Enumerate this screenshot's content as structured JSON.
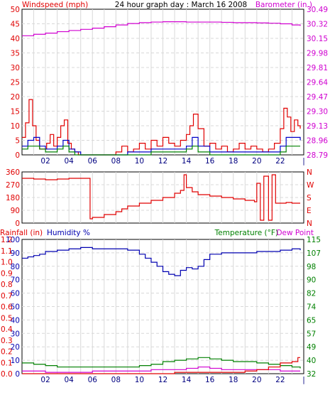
{
  "header": {
    "title": "24 hour graph day : March 16 2008",
    "left_label": "Windspeed (mph)",
    "right_label": "Barometer (in.)"
  },
  "colors": {
    "background": "#ffffff",
    "grid": "#d8d8d8",
    "frame": "#000000",
    "wind": "#e00000",
    "wind_gust_mid": "#0000c8",
    "wind_low": "#008000",
    "barometer": "#d000d0",
    "direction": "#e00000",
    "rainfall": "#e00000",
    "humidity": "#0000b0",
    "temperature": "#008000",
    "dewpoint": "#d000d0",
    "label_red": "#e00000",
    "label_magenta": "#d000d0",
    "label_blue": "#0000b0",
    "label_green": "#008000"
  },
  "x_ticks": [
    "02",
    "04",
    "06",
    "08",
    "10",
    "12",
    "14",
    "16",
    "18",
    "20",
    "22",
    "|"
  ],
  "chart_data": [
    {
      "type": "line",
      "title": "24 hour graph day : March 16 2008",
      "xlabel": "",
      "ylabel": "Windspeed (mph)",
      "y2label": "Barometer (in.)",
      "xlim": [
        0,
        24
      ],
      "ylim": [
        0,
        50
      ],
      "y_ticks": [
        "0",
        "5",
        "10",
        "15",
        "20",
        "25",
        "30",
        "35",
        "40",
        "45",
        "50"
      ],
      "y2_ticks": [
        "28.79",
        "28.96",
        "29.13",
        "29.30",
        "29.47",
        "29.64",
        "29.81",
        "29.98",
        "30.15",
        "30.32",
        "30.49"
      ],
      "series": [
        {
          "color": "#d000d0",
          "x": [
            0,
            1,
            2,
            3,
            4,
            5,
            6,
            7,
            8,
            9,
            10,
            11,
            12,
            13,
            14,
            15,
            16,
            17,
            18,
            19,
            20,
            21,
            22,
            23,
            23.7
          ],
          "y": [
            40.9,
            41.4,
            41.8,
            42.3,
            42.7,
            43.1,
            43.5,
            44.0,
            44.6,
            45.1,
            45.4,
            45.6,
            45.7,
            45.7,
            45.6,
            45.6,
            45.6,
            45.5,
            45.4,
            45.4,
            45.3,
            45.2,
            45.0,
            44.6,
            44.3
          ]
        },
        {
          "color": "#e00000",
          "x": [
            0,
            0.3,
            0.6,
            0.9,
            1.2,
            1.5,
            1.8,
            2.1,
            2.4,
            2.7,
            3.0,
            3.3,
            3.6,
            3.9,
            4.2,
            4.5,
            4.8,
            5.2,
            6,
            7,
            8,
            8.5,
            9,
            9.5,
            10,
            10.5,
            11,
            11.5,
            12,
            12.5,
            13,
            13.5,
            14,
            14.3,
            14.6,
            15,
            15.5,
            16,
            16.5,
            17,
            17.5,
            18,
            18.5,
            19,
            19.5,
            20,
            20.5,
            21,
            21.5,
            22,
            22.3,
            22.6,
            22.9,
            23.2,
            23.5,
            23.7
          ],
          "y": [
            6,
            11,
            19,
            10,
            5,
            2,
            2,
            4,
            7,
            3,
            6,
            10,
            12,
            4,
            2,
            1,
            0,
            0,
            0,
            0,
            1,
            3,
            1,
            2,
            4,
            2,
            5,
            3,
            6,
            4,
            3,
            5,
            7,
            10,
            14,
            9,
            3,
            4,
            2,
            3,
            1,
            2,
            4,
            2,
            3,
            2,
            1,
            2,
            4,
            9,
            16,
            13,
            8,
            12,
            10,
            9
          ]
        },
        {
          "color": "#0000c8",
          "x": [
            0,
            0.5,
            1,
            1.5,
            2,
            2.5,
            3,
            3.5,
            4,
            4.5,
            5,
            6,
            7,
            8,
            9,
            10,
            11,
            12,
            13,
            14,
            14.5,
            15,
            16,
            17,
            18,
            19,
            20,
            21,
            22,
            22.5,
            23,
            23.7
          ],
          "y": [
            3,
            5,
            6,
            3,
            2,
            2,
            3,
            5,
            2,
            1,
            0,
            0,
            0,
            0,
            1,
            1,
            2,
            2,
            2,
            3,
            6,
            3,
            1,
            1,
            1,
            1,
            1,
            1,
            3,
            6,
            6,
            5
          ]
        },
        {
          "color": "#008000",
          "x": [
            0,
            0.5,
            1,
            1.5,
            2,
            2.5,
            3,
            3.5,
            4,
            4.5,
            5,
            6,
            7,
            8,
            9,
            10,
            11,
            12,
            13,
            14,
            14.5,
            15,
            16,
            17,
            18,
            19,
            20,
            21,
            22,
            22.5,
            23,
            23.7
          ],
          "y": [
            2,
            3,
            3,
            2,
            1,
            1,
            2,
            3,
            1,
            0,
            0,
            0,
            0,
            0,
            0,
            0,
            1,
            1,
            1,
            2,
            3,
            1,
            0,
            0,
            0,
            0,
            0,
            0,
            1,
            3,
            3,
            3
          ]
        }
      ]
    },
    {
      "type": "line",
      "title": "",
      "xlabel": "",
      "ylabel": "",
      "xlim": [
        0,
        24
      ],
      "ylim": [
        0,
        360
      ],
      "y_ticks": [
        "0",
        "90",
        "180",
        "270",
        "360"
      ],
      "y2_ticks": [
        "N",
        "E",
        "S",
        "W",
        "N"
      ],
      "series": [
        {
          "color": "#e00000",
          "x": [
            0,
            1,
            2,
            3,
            4,
            5,
            5.6,
            5.8,
            6,
            7,
            8,
            8.5,
            9,
            10,
            11,
            12,
            13,
            13.5,
            13.8,
            14,
            14.5,
            15,
            16,
            17,
            18,
            19,
            19.8,
            20,
            20.3,
            20.6,
            21,
            21.3,
            21.6,
            22,
            22.5,
            23,
            23.7
          ],
          "y": [
            315,
            310,
            305,
            310,
            315,
            315,
            315,
            30,
            40,
            60,
            80,
            100,
            120,
            140,
            160,
            180,
            210,
            230,
            340,
            250,
            220,
            200,
            190,
            180,
            170,
            160,
            150,
            280,
            20,
            330,
            20,
            340,
            140,
            140,
            145,
            140,
            140
          ]
        }
      ]
    },
    {
      "type": "line",
      "title": "",
      "xlabel": "",
      "ylabel": "Rainfall (in)",
      "ylabel2": "Humidity %",
      "y2label": "Temperature (°F)",
      "y2label2": "Dew Point",
      "xlim": [
        0,
        24
      ],
      "ylim": [
        0,
        100
      ],
      "y_ticks": [
        "0",
        "10",
        "20",
        "30",
        "40",
        "50",
        "60",
        "70",
        "80",
        "90",
        "100"
      ],
      "y_ticks_rain": [
        "0.0",
        "0.1",
        "0.2",
        "0.3",
        "0.4",
        "0.5",
        "0.6",
        "0.7",
        "0.8",
        "0.9",
        "1.0",
        "1.1",
        "1.2"
      ],
      "y2_ticks": [
        "32",
        "40",
        "49",
        "57",
        "65",
        "74",
        "82",
        "90",
        "98",
        "107",
        "115"
      ],
      "series": [
        {
          "color": "#0000b0",
          "x": [
            0,
            0.5,
            1,
            1.5,
            2,
            3,
            4,
            5,
            6,
            7,
            8,
            9,
            10,
            10.5,
            11,
            11.5,
            12,
            12.5,
            13,
            13.5,
            14,
            14.5,
            15,
            15.5,
            16,
            17,
            18,
            19,
            20,
            21,
            22,
            23,
            23.7
          ],
          "y": [
            86,
            87,
            88,
            89,
            91,
            92,
            93,
            94,
            93,
            93,
            93,
            92,
            89,
            86,
            83,
            80,
            76,
            74,
            73,
            77,
            79,
            78,
            80,
            85,
            89,
            90,
            90,
            90,
            91,
            91,
            92,
            93,
            92
          ]
        },
        {
          "color": "#008000",
          "x": [
            0,
            1,
            2,
            3,
            4,
            5,
            6,
            7,
            8,
            9,
            10,
            11,
            12,
            13,
            14,
            15,
            16,
            17,
            18,
            19,
            20,
            21,
            22,
            23,
            23.7
          ],
          "y": [
            8,
            7,
            6,
            5,
            5,
            5,
            5,
            5,
            5,
            5,
            6,
            7,
            9,
            10,
            11,
            12,
            11,
            10,
            9,
            9,
            8,
            7,
            6,
            5,
            4
          ]
        },
        {
          "color": "#d000d0",
          "x": [
            0,
            1,
            2,
            3,
            4,
            5,
            6,
            7,
            8,
            9,
            10,
            11,
            12,
            13,
            14,
            15,
            16,
            17,
            18,
            19,
            20,
            21,
            22,
            23,
            23.7
          ],
          "y": [
            2,
            2,
            1,
            1,
            1,
            1,
            2,
            2,
            2,
            2,
            2,
            3,
            3,
            3,
            4,
            5,
            4,
            3,
            3,
            3,
            3,
            3,
            2,
            2,
            2
          ]
        },
        {
          "color": "#e00000",
          "x": [
            0,
            2,
            4,
            6,
            8,
            10,
            12,
            13,
            14,
            15,
            16,
            17,
            18,
            19,
            20,
            21,
            22,
            23,
            23.5,
            23.7
          ],
          "y": [
            0,
            0,
            0,
            0,
            0,
            0,
            0,
            1,
            1,
            1,
            1,
            1,
            1,
            2,
            3,
            5,
            8,
            9,
            12,
            12
          ]
        }
      ]
    }
  ]
}
